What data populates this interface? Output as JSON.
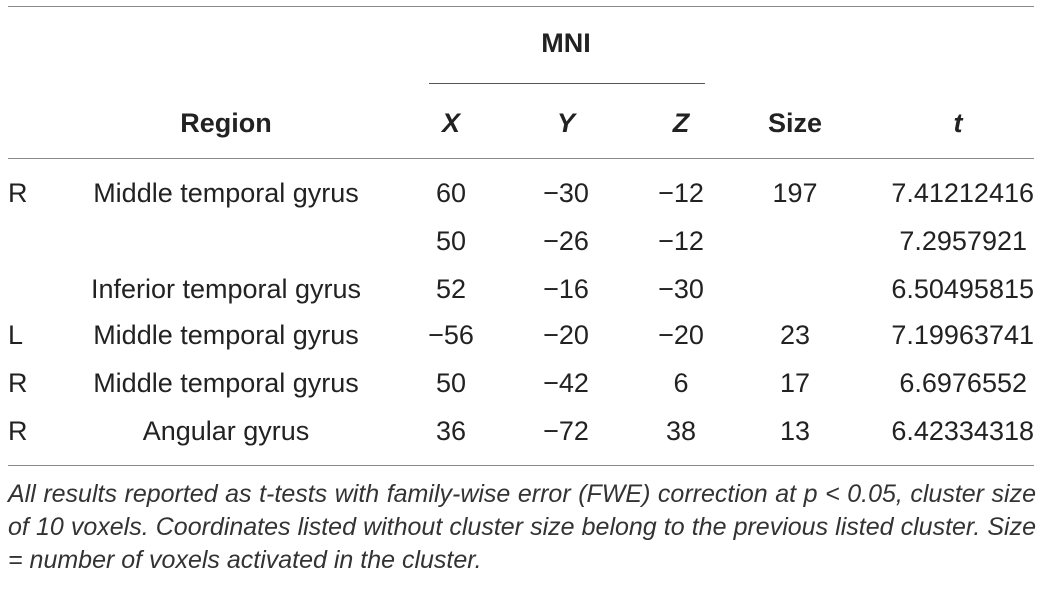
{
  "header": {
    "mni": "MNI",
    "region": "Region",
    "x": "X",
    "y": "Y",
    "z": "Z",
    "size": "Size",
    "t": "t"
  },
  "rows": [
    {
      "hemi": "R",
      "region": "Middle temporal gyrus",
      "x": "60",
      "y": "−30",
      "z": "−12",
      "size": "197",
      "t": "7.41212416"
    },
    {
      "hemi": "",
      "region": "",
      "x": "50",
      "y": "−26",
      "z": "−12",
      "size": "",
      "t": "7.2957921"
    },
    {
      "hemi": "",
      "region": "Inferior temporal gyrus",
      "x": "52",
      "y": "−16",
      "z": "−30",
      "size": "",
      "t": "6.50495815"
    },
    {
      "hemi": "L",
      "region": "Middle temporal gyrus",
      "x": "−56",
      "y": "−20",
      "z": "−20",
      "size": "23",
      "t": "7.19963741"
    },
    {
      "hemi": "R",
      "region": "Middle temporal gyrus",
      "x": "50",
      "y": "−42",
      "z": "6",
      "size": "17",
      "t": "6.6976552"
    },
    {
      "hemi": "R",
      "region": "Angular gyrus",
      "x": "36",
      "y": "−72",
      "z": "38",
      "size": "13",
      "t": "6.42334318"
    }
  ],
  "footnote": "All results reported as t-tests with family-wise error (FWE) correction at p < 0.05, cluster size of 10 voxels. Coordinates listed without cluster size belong to the previous listed cluster. Size = number of voxels activated in the cluster."
}
